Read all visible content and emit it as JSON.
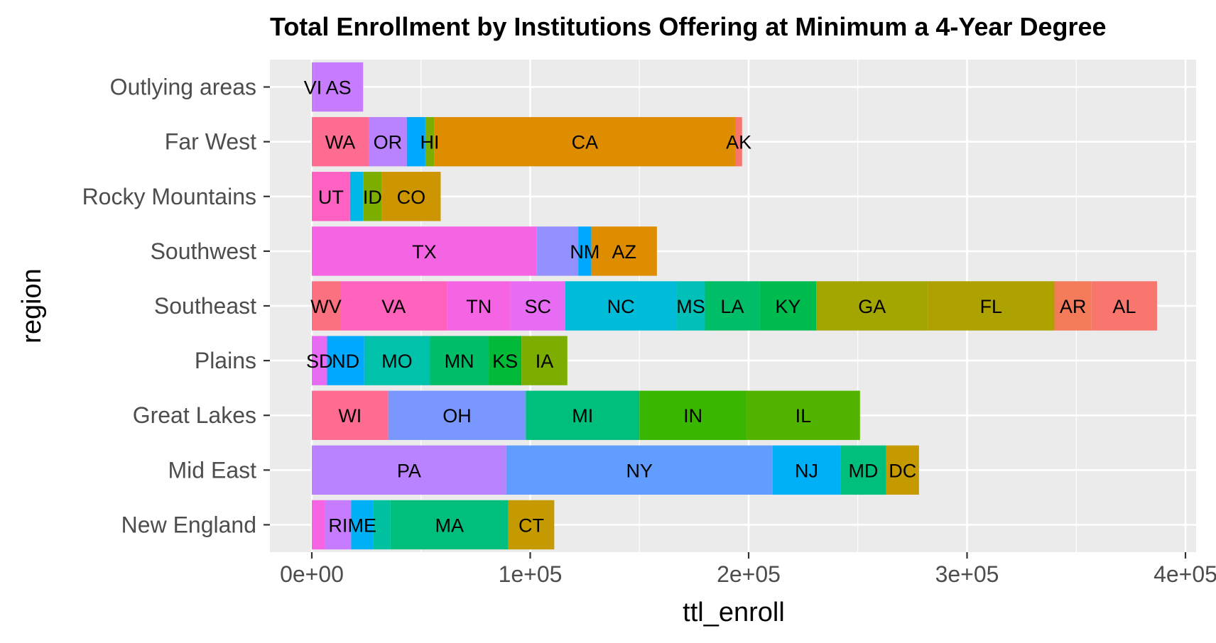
{
  "chart_data": {
    "type": "bar",
    "orientation": "horizontal",
    "stacked": true,
    "title": "Total Enrollment by Institutions Offering at Minimum a 4-Year Degree",
    "xlabel": "ttl_enroll",
    "ylabel": "region",
    "xlim": [
      -19000,
      405000
    ],
    "x_ticks": [
      0,
      100000,
      200000,
      300000,
      400000
    ],
    "x_tick_labels": [
      "0e+00",
      "1e+05",
      "2e+05",
      "3e+05",
      "4e+05"
    ],
    "grid": true,
    "panel_background": "#ebebeb",
    "legend": "none",
    "categories": [
      "New England",
      "Mid East",
      "Great Lakes",
      "Plains",
      "Southeast",
      "Southwest",
      "Rocky Mountains",
      "Far West",
      "Outlying areas"
    ],
    "series": [
      {
        "category": "New England",
        "segments": [
          {
            "label": "",
            "value": 6000,
            "color": "#F564E3"
          },
          {
            "label": "RI",
            "value": 12000,
            "color": "#C77CFF"
          },
          {
            "label": "ME",
            "value": 10000,
            "color": "#00B0F6"
          },
          {
            "label": "",
            "value": 8000,
            "color": "#00C19F"
          },
          {
            "label": "MA",
            "value": 54000,
            "color": "#00BF7D"
          },
          {
            "label": "CT",
            "value": 21000,
            "color": "#C49A00"
          }
        ]
      },
      {
        "category": "Mid East",
        "segments": [
          {
            "label": "PA",
            "value": 89000,
            "color": "#B983FF"
          },
          {
            "label": "NY",
            "value": 122000,
            "color": "#619CFF"
          },
          {
            "label": "NJ",
            "value": 31000,
            "color": "#00B0F6"
          },
          {
            "label": "MD",
            "value": 21000,
            "color": "#00BF7D"
          },
          {
            "label": "DC",
            "value": 15000,
            "color": "#C49A00"
          }
        ]
      },
      {
        "category": "Great Lakes",
        "segments": [
          {
            "label": "WI",
            "value": 35000,
            "color": "#FF6C91"
          },
          {
            "label": "OH",
            "value": 63000,
            "color": "#7997FF"
          },
          {
            "label": "MI",
            "value": 52000,
            "color": "#00BF7D"
          },
          {
            "label": "IN",
            "value": 49000,
            "color": "#39B600"
          },
          {
            "label": "IL",
            "value": 52000,
            "color": "#53B400"
          }
        ]
      },
      {
        "category": "Plains",
        "segments": [
          {
            "label": "SD",
            "value": 7000,
            "color": "#E76BF3"
          },
          {
            "label": "ND",
            "value": 17000,
            "color": "#00A9FF"
          },
          {
            "label": "MO",
            "value": 30000,
            "color": "#00C1AA"
          },
          {
            "label": "MN",
            "value": 27000,
            "color": "#00BE67"
          },
          {
            "label": "KS",
            "value": 15000,
            "color": "#00BA38"
          },
          {
            "label": "IA",
            "value": 21000,
            "color": "#7CAE00"
          }
        ]
      },
      {
        "category": "Southeast",
        "segments": [
          {
            "label": "WV",
            "value": 13000,
            "color": "#FC717F"
          },
          {
            "label": "VA",
            "value": 49000,
            "color": "#FF62BC"
          },
          {
            "label": "TN",
            "value": 29000,
            "color": "#F564E3"
          },
          {
            "label": "SC",
            "value": 25000,
            "color": "#E76BF3"
          },
          {
            "label": "NC",
            "value": 51000,
            "color": "#00BCD8"
          },
          {
            "label": "MS",
            "value": 13000,
            "color": "#00C0B8"
          },
          {
            "label": "LA",
            "value": 25000,
            "color": "#00BE67"
          },
          {
            "label": "KY",
            "value": 26000,
            "color": "#00BB4E"
          },
          {
            "label": "GA",
            "value": 51000,
            "color": "#A3A500"
          },
          {
            "label": "FL",
            "value": 58000,
            "color": "#AEA200"
          },
          {
            "label": "AR",
            "value": 17000,
            "color": "#F37B59"
          },
          {
            "label": "AL",
            "value": 30000,
            "color": "#F8766D"
          }
        ]
      },
      {
        "category": "Southwest",
        "segments": [
          {
            "label": "TX",
            "value": 103000,
            "color": "#F564E3"
          },
          {
            "label": "",
            "value": 19000,
            "color": "#9590FF"
          },
          {
            "label": "NM",
            "value": 6000,
            "color": "#00A9FF"
          },
          {
            "label": "AZ",
            "value": 30000,
            "color": "#DE8C00"
          }
        ]
      },
      {
        "category": "Rocky Mountains",
        "segments": [
          {
            "label": "UT",
            "value": 17500,
            "color": "#FF61C3"
          },
          {
            "label": "",
            "value": 6000,
            "color": "#00B8E7"
          },
          {
            "label": "ID",
            "value": 8500,
            "color": "#7CAE00"
          },
          {
            "label": "CO",
            "value": 27000,
            "color": "#CD9600"
          }
        ]
      },
      {
        "category": "Far West",
        "segments": [
          {
            "label": "WA",
            "value": 26000,
            "color": "#FF6C91"
          },
          {
            "label": "OR",
            "value": 17500,
            "color": "#B983FF"
          },
          {
            "label": "",
            "value": 8500,
            "color": "#00A9FF"
          },
          {
            "label": "HI",
            "value": 4000,
            "color": "#7CAE00"
          },
          {
            "label": "CA",
            "value": 138000,
            "color": "#DE8C00"
          },
          {
            "label": "AK",
            "value": 3000,
            "color": "#F8766D"
          }
        ]
      },
      {
        "category": "Outlying areas",
        "segments": [
          {
            "label": "VI",
            "value": 1000,
            "color": "#C77CFF"
          },
          {
            "label": "AS",
            "value": 22500,
            "color": "#C77CFF"
          }
        ]
      }
    ]
  }
}
